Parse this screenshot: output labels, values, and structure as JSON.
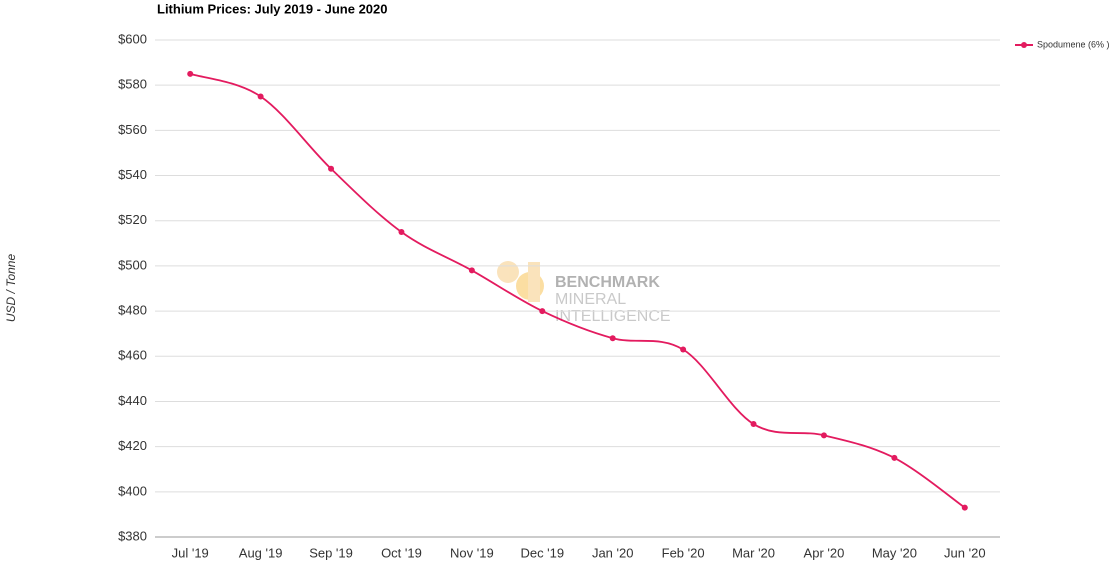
{
  "chart_data": {
    "type": "line",
    "title": "Lithium Prices: July 2019 - June 2020",
    "y_label": "USD / Tonne",
    "watermark": [
      "BENCHMARK",
      "MINERAL",
      "INTELLIGENCE"
    ],
    "categories": [
      "Jul '19",
      "Aug '19",
      "Sep '19",
      "Oct '19",
      "Nov '19",
      "Dec '19",
      "Jan '20",
      "Feb '20",
      "Mar '20",
      "Apr '20",
      "May '20",
      "Jun '20"
    ],
    "series": [
      {
        "name": "Spodumene (6% )",
        "color": "#e31b5f",
        "values": [
          585,
          575,
          543,
          515,
          498,
          480,
          468,
          463,
          430,
          425,
          415,
          393
        ]
      }
    ],
    "ylim": [
      380,
      600
    ],
    "yticks": [
      {
        "value": 380,
        "label": "$380"
      },
      {
        "value": 400,
        "label": "$400"
      },
      {
        "value": 420,
        "label": "$420"
      },
      {
        "value": 440,
        "label": "$440"
      },
      {
        "value": 460,
        "label": "$460"
      },
      {
        "value": 480,
        "label": "$480"
      },
      {
        "value": 500,
        "label": "$500"
      },
      {
        "value": 520,
        "label": "$520"
      },
      {
        "value": 540,
        "label": "$540"
      },
      {
        "value": 560,
        "label": "$560"
      },
      {
        "value": 580,
        "label": "$580"
      },
      {
        "value": 600,
        "label": "$600"
      }
    ],
    "grid": true,
    "legend": "top-right"
  }
}
